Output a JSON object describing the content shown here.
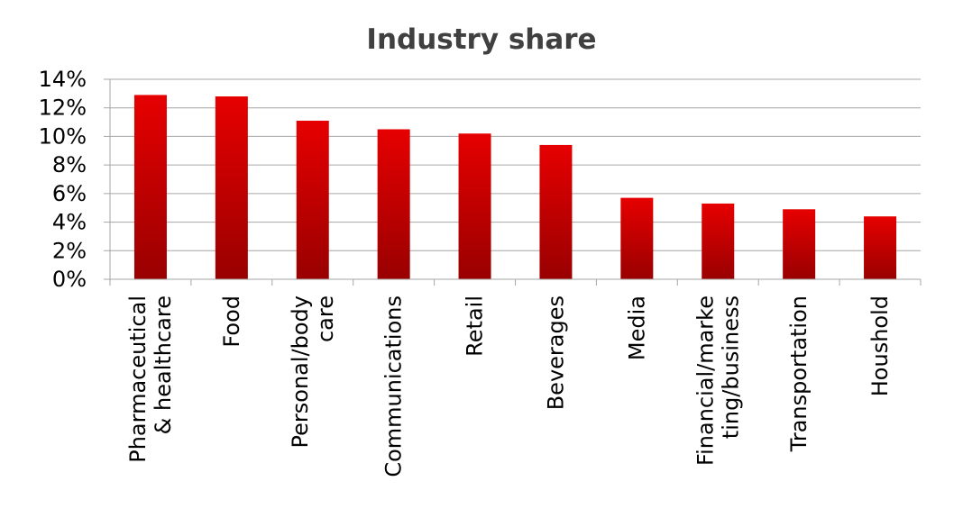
{
  "chart_data": {
    "type": "bar",
    "title": "Industry share",
    "xlabel": "",
    "ylabel": "",
    "ylim": [
      0,
      14
    ],
    "ytick_step": 2,
    "ytick_format": "{v}%",
    "categories": [
      [
        "Pharmaceutical",
        "& healthcare"
      ],
      [
        "Food"
      ],
      [
        "Personal/body",
        "care"
      ],
      [
        "Communications"
      ],
      [
        "Retail"
      ],
      [
        "Beverages"
      ],
      [
        "Media"
      ],
      [
        "Financial/marke",
        "ting/business"
      ],
      [
        "Transportation"
      ],
      [
        "Houshold"
      ]
    ],
    "values": [
      12.9,
      12.8,
      11.1,
      10.5,
      10.2,
      9.4,
      5.7,
      5.3,
      4.9,
      4.4
    ],
    "grid": true,
    "legend": "none",
    "colors": {
      "bar_top": "#e60000",
      "bar_bottom": "#990000",
      "grid": "#a6a6a6",
      "axis": "#a6a6a6",
      "title": "#404040"
    }
  }
}
